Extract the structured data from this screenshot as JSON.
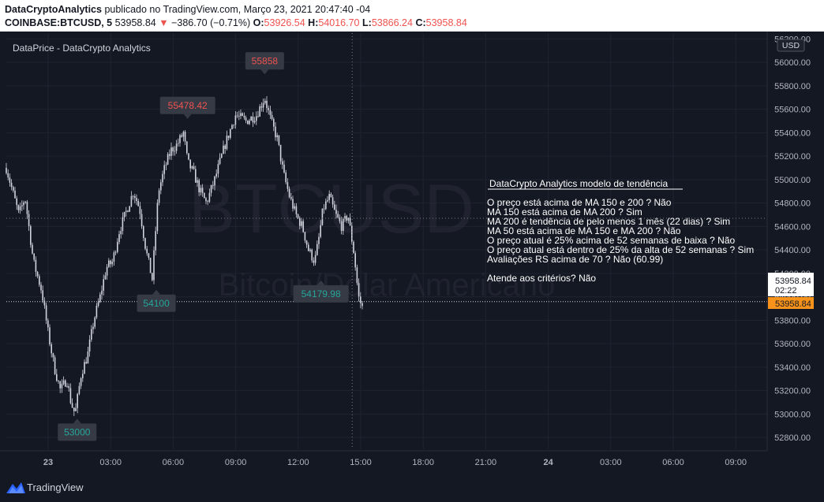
{
  "header": {
    "author": "DataCryptoAnalytics",
    "published": "publicado no TradingView.com, Março 23, 2021 20:47:40 -04",
    "symbol": "COINBASE:BTCUSD, 5",
    "last": "53958.84",
    "change": "−386.70 (−0.71%)",
    "o_label": "O:",
    "o_value": "53926.54",
    "h_label": "H:",
    "h_value": "54016.70",
    "l_label": "L:",
    "l_value": "53866.24",
    "c_label": "C:",
    "c_value": "53958.84"
  },
  "chart_data": {
    "type": "candlestick",
    "title": "DataPrice - DataCrypto Analytics",
    "watermark_symbol": "BTCUSD",
    "watermark_name": "Bitcoin/Dólar Americano",
    "currency": "USD",
    "ylim": [
      52700,
      56250
    ],
    "y_ticks": [
      "56200.00",
      "56000.00",
      "55800.00",
      "55600.00",
      "55400.00",
      "55200.00",
      "55000.00",
      "54800.00",
      "54600.00",
      "54400.00",
      "54200.00",
      "54000.00",
      "53800.00",
      "53600.00",
      "53400.00",
      "53200.00",
      "53000.00",
      "52800.00"
    ],
    "x_ticks": [
      "23",
      "03:00",
      "06:00",
      "09:00",
      "12:00",
      "15:00",
      "18:00",
      "21:00",
      "24",
      "03:00",
      "06:00",
      "09:00"
    ],
    "close_path": [
      [
        0,
        55100
      ],
      [
        0.3,
        54900
      ],
      [
        0.6,
        54700
      ],
      [
        0.9,
        54850
      ],
      [
        1.3,
        54300
      ],
      [
        1.7,
        54050
      ],
      [
        2.0,
        53700
      ],
      [
        2.3,
        53400
      ],
      [
        2.6,
        53200
      ],
      [
        2.9,
        53300
      ],
      [
        3.1,
        53100
      ],
      [
        3.3,
        53000
      ],
      [
        3.6,
        53350
      ],
      [
        3.9,
        53500
      ],
      [
        4.2,
        53800
      ],
      [
        4.5,
        54000
      ],
      [
        4.8,
        54250
      ],
      [
        5.1,
        54300
      ],
      [
        5.4,
        54550
      ],
      [
        5.8,
        54750
      ],
      [
        6.1,
        54900
      ],
      [
        6.4,
        54750
      ],
      [
        6.7,
        54400
      ],
      [
        7.0,
        54150
      ],
      [
        7.3,
        54900
      ],
      [
        7.6,
        55100
      ],
      [
        7.9,
        55250
      ],
      [
        8.2,
        55300
      ],
      [
        8.5,
        55400
      ],
      [
        8.7,
        55150
      ],
      [
        9.0,
        55050
      ],
      [
        9.3,
        54900
      ],
      [
        9.6,
        54800
      ],
      [
        10.0,
        55000
      ],
      [
        10.5,
        55300
      ],
      [
        11.0,
        55550
      ],
      [
        11.5,
        55500
      ],
      [
        12.0,
        55550
      ],
      [
        12.4,
        55700
      ],
      [
        12.7,
        55500
      ],
      [
        13.0,
        55350
      ],
      [
        13.3,
        55050
      ],
      [
        13.6,
        54850
      ],
      [
        13.9,
        54700
      ],
      [
        14.2,
        54600
      ],
      [
        14.5,
        54400
      ],
      [
        14.8,
        54300
      ],
      [
        15.0,
        54500
      ],
      [
        15.2,
        54750
      ],
      [
        15.5,
        54850
      ],
      [
        15.8,
        54700
      ],
      [
        16.1,
        54600
      ],
      [
        16.4,
        54700
      ],
      [
        16.7,
        54350
      ],
      [
        16.9,
        54000
      ],
      [
        17.1,
        53900
      ]
    ],
    "annotations": [
      {
        "label": "55478.42",
        "time": 8.7,
        "value": 55478.42,
        "kind": "high"
      },
      {
        "label": "55858",
        "time": 12.4,
        "value": 55858,
        "kind": "high"
      },
      {
        "label": "54100",
        "time": 7.2,
        "value": 54100,
        "kind": "low"
      },
      {
        "label": "54179.98",
        "time": 15.1,
        "value": 54179.98,
        "kind": "low"
      },
      {
        "label": "53000",
        "time": 3.4,
        "value": 53000,
        "kind": "low"
      }
    ],
    "current_price": "53958.84",
    "countdown": "02:22",
    "price_line": 53958.84,
    "h_crosshair": 54670,
    "v_crosshair_time": 16.6
  },
  "panel": {
    "title": "DataCrypto Analytics modelo de tendência",
    "lines": [
      "O preço está acima de MA 150 e 200 ? Não",
      "MA 150 está acima de MA 200 ? Sim",
      "MA 200 é tendência de pelo menos 1 mês (22 dias) ? Sim",
      "MA 50 está acima de MA 150 e MA 200 ? Não",
      "O preço atual é 25% acima de 52 semanas de baixa ? Não",
      "O preço atual está dentro de 25% da alta de 52 semanas ? Sim",
      "Avaliações RS acima de 70 ? Não (60.99)"
    ],
    "result": "Atende aos critérios? Não"
  },
  "footer": {
    "brand": "TradingView"
  },
  "colors": {
    "background": "#141823",
    "grid": "#1f2330",
    "candles": "#d1d4dc",
    "high_label": "#ef5350",
    "low_label": "#26a69a",
    "price_tag": "#f7931a"
  }
}
